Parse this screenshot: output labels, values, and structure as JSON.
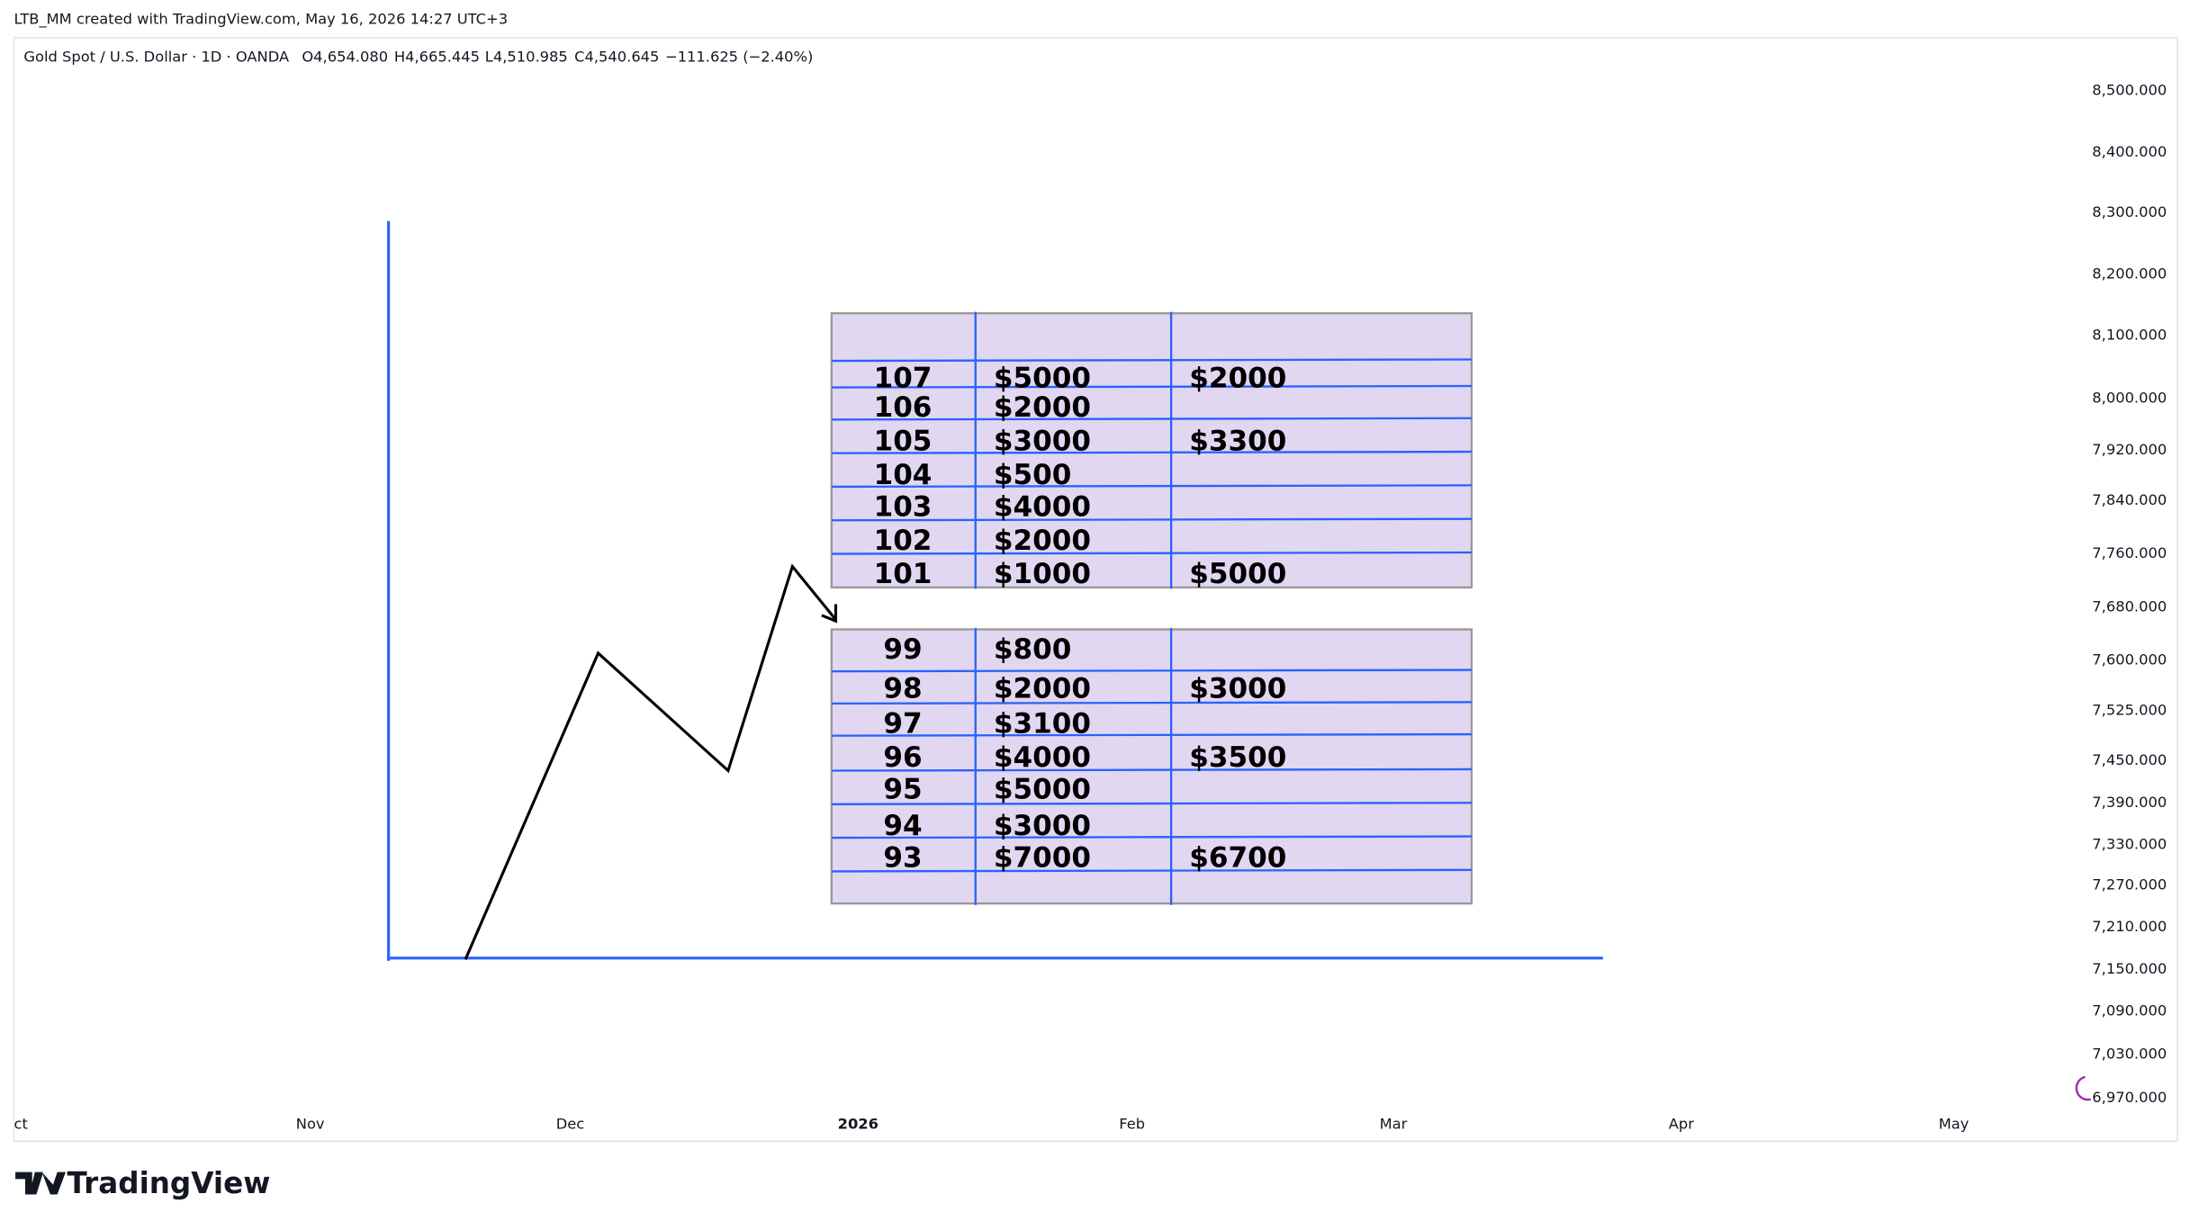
{
  "header": {
    "created": "LTB_MM created with TradingView.com, May 16, 2026 14:27 UTC+3",
    "symbol": "Gold Spot / U.S. Dollar · 1D · OANDA",
    "ohlc": [
      "O4,654.080",
      "H4,665.445",
      "L4,510.985",
      "C4,540.645",
      "−111.625 (−2.40%)"
    ]
  },
  "price_axis": [
    "8,500.000",
    "8,400.000",
    "8,300.000",
    "8,200.000",
    "8,100.000",
    "8,000.000",
    "7,920.000",
    "7,840.000",
    "7,760.000",
    "7,680.000",
    "7,600.000",
    "7,525.000",
    "7,450.000",
    "7,390.000",
    "7,330.000",
    "7,270.000",
    "7,210.000",
    "7,150.000",
    "7,090.000",
    "7,030.000",
    "6,970.000"
  ],
  "time_axis": [
    "ct",
    "Nov",
    "Dec",
    "2026",
    "Feb",
    "Mar",
    "Apr",
    "May"
  ],
  "upper_table": {
    "rows": [
      [
        "107",
        "$5000",
        "$2000"
      ],
      [
        "106",
        "$2000"
      ],
      [
        "105",
        "$3000",
        "$3300"
      ],
      [
        "104",
        "$500"
      ],
      [
        "103",
        "$4000"
      ],
      [
        "102",
        "$2000"
      ],
      [
        "101",
        "$1000",
        "$5000"
      ]
    ]
  },
  "lower_table": {
    "rows": [
      [
        "99",
        "$800"
      ],
      [
        "98",
        "$2000",
        "$3000"
      ],
      [
        "97",
        "$3100"
      ],
      [
        "96",
        "$4000",
        "$3500"
      ],
      [
        "95",
        "$5000"
      ],
      [
        "94",
        "$3000"
      ],
      [
        "93",
        "$7000",
        "$6700"
      ]
    ]
  },
  "logo": "TradingView"
}
